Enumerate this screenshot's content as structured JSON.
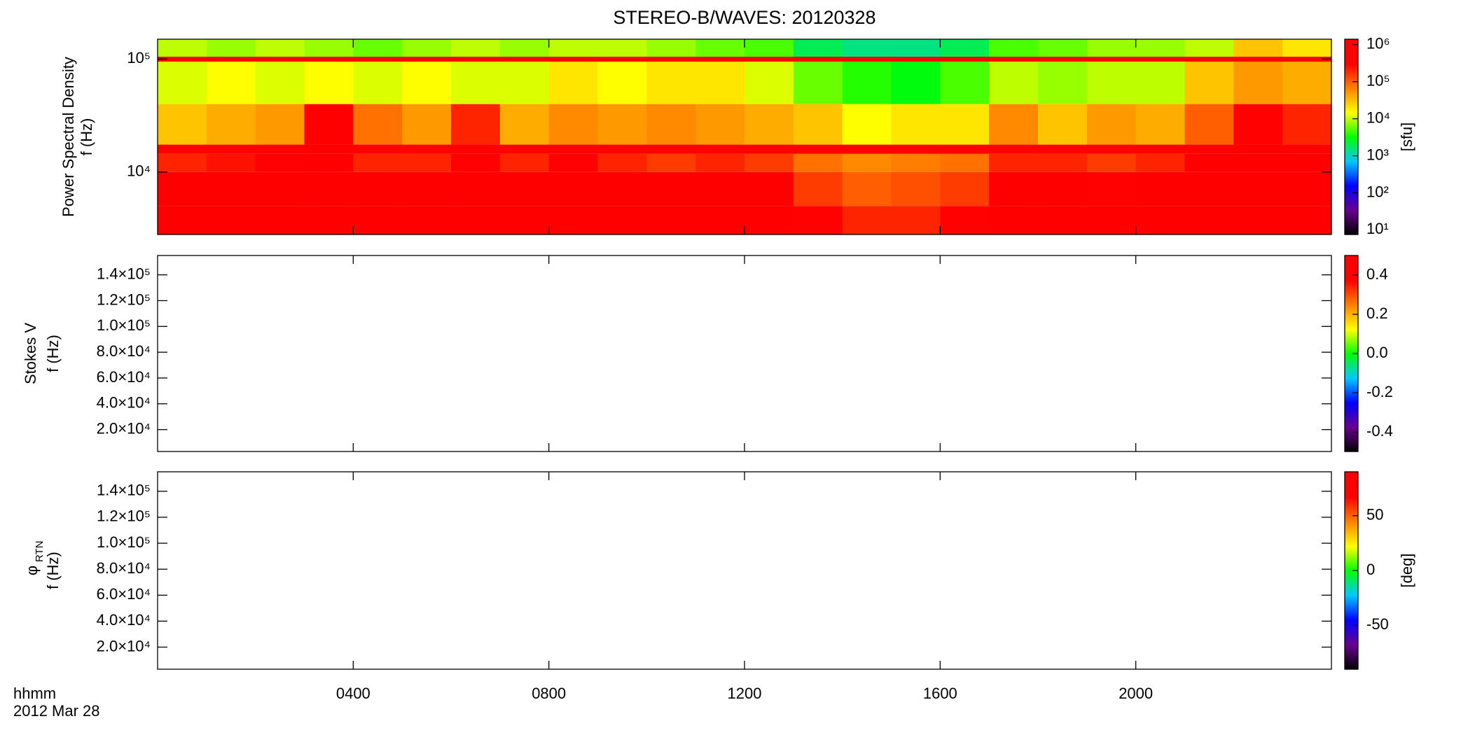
{
  "chart_data": [
    {
      "type": "heatmap",
      "title": "STEREO-B/WAVES: 20120328",
      "ylabel": [
        "Power Spectral Density",
        "f (Hz)"
      ],
      "xlim": [
        0,
        24
      ],
      "ylim": [
        2800,
        150000
      ],
      "log_y": true,
      "yticks": [
        {
          "value": 10000,
          "label": "10⁴"
        },
        {
          "value": 100000,
          "label": "10⁵"
        }
      ],
      "x_bins": [
        0,
        1,
        2,
        3,
        4,
        5,
        6,
        7,
        8,
        9,
        10,
        11,
        12,
        13,
        14,
        15,
        16,
        17,
        18,
        19,
        20,
        21,
        22,
        23,
        24
      ],
      "y_bins": [
        2800,
        5000,
        10000,
        14500,
        17500,
        40000,
        95000,
        105000,
        150000
      ],
      "z": [
        [
          1000000,
          1000000,
          1000000,
          1000000,
          1000000,
          1000000,
          1000000,
          1000000,
          1000000,
          1000000,
          1000000,
          1000000,
          1000000,
          300000,
          200000,
          200000,
          300000,
          1000000,
          1000000,
          1000000,
          1000000,
          1000000,
          1000000,
          1000000
        ],
        [
          400000,
          500000,
          400000,
          600000,
          500000,
          600000,
          500000,
          1000000,
          1000000,
          600000,
          500000,
          600000,
          500000,
          150000,
          100000,
          120000,
          150000,
          600000,
          500000,
          300000,
          400000,
          1000000,
          1000000,
          1000000
        ],
        [
          200000,
          250000,
          300000,
          1000000,
          200000,
          200000,
          300000,
          200000,
          300000,
          200000,
          150000,
          200000,
          150000,
          80000,
          60000,
          70000,
          80000,
          200000,
          200000,
          150000,
          200000,
          800000,
          1000000,
          1000000
        ],
        [
          1000000,
          1000000,
          1000000,
          1000000,
          1000000,
          1000000,
          1000000,
          1000000,
          1000000,
          1000000,
          1000000,
          1000000,
          1000000,
          1000000,
          1000000,
          1000000,
          1000000,
          1000000,
          1000000,
          1000000,
          1000000,
          1000000,
          1000000,
          1000000
        ],
        [
          30000,
          40000,
          50000,
          500000,
          80000,
          50000,
          200000,
          40000,
          60000,
          50000,
          60000,
          50000,
          40000,
          30000,
          15000,
          20000,
          20000,
          60000,
          30000,
          50000,
          40000,
          100000,
          300000,
          200000
        ],
        [
          12000,
          15000,
          12000,
          15000,
          12000,
          15000,
          12000,
          12000,
          20000,
          15000,
          20000,
          20000,
          12000,
          6000,
          4000,
          3000,
          5000,
          10000,
          8000,
          10000,
          10000,
          30000,
          50000,
          40000
        ],
        [
          1000000,
          1000000,
          1000000,
          1000000,
          1000000,
          1000000,
          1000000,
          1000000,
          1000000,
          1000000,
          1000000,
          1000000,
          1000000,
          1000000,
          1000000,
          1000000,
          1000000,
          1000000,
          1000000,
          1000000,
          1000000,
          1000000,
          1000000,
          1000000
        ],
        [
          10000,
          8000,
          10000,
          8000,
          6000,
          8000,
          10000,
          8000,
          10000,
          10000,
          8000,
          6000,
          5000,
          2000,
          1500,
          1500,
          2000,
          5000,
          6000,
          8000,
          8000,
          10000,
          30000,
          20000
        ]
      ],
      "zlim": [
        7.5,
        1400000
      ],
      "colorbar_log": true,
      "colorbar_ticks": [
        {
          "value": 10,
          "label": "10¹"
        },
        {
          "value": 100,
          "label": "10²"
        },
        {
          "value": 1000,
          "label": "10³"
        },
        {
          "value": 10000,
          "label": "10⁴"
        },
        {
          "value": 100000,
          "label": "10⁵"
        },
        {
          "value": 1000000,
          "label": "10⁶"
        }
      ],
      "colorbar_label": "[sfu]",
      "colormap": [
        "#000000",
        "#6a0090",
        "#0000ff",
        "#00c8ff",
        "#00ff00",
        "#ffff00",
        "#ff8000",
        "#ff0000",
        "#ff0000"
      ]
    },
    {
      "type": "heatmap",
      "ylabel": [
        "Stokes V",
        "f (Hz)"
      ],
      "xlim": [
        0,
        24
      ],
      "ylim": [
        3000,
        155000
      ],
      "log_y": false,
      "yticks": [
        {
          "value": 20000,
          "label": "2.0×10⁴"
        },
        {
          "value": 40000,
          "label": "4.0×10⁴"
        },
        {
          "value": 60000,
          "label": "6.0×10⁴"
        },
        {
          "value": 80000,
          "label": "8.0×10⁴"
        },
        {
          "value": 100000,
          "label": "1.0×10⁵"
        },
        {
          "value": 120000,
          "label": "1.2×10⁵"
        },
        {
          "value": 140000,
          "label": "1.4×10⁵"
        }
      ],
      "zlim": [
        -0.5,
        0.5
      ],
      "colorbar_log": false,
      "colorbar_ticks": [
        -0.4,
        -0.2,
        {
          "value": 0,
          "label": "0.0"
        },
        0.2,
        0.4
      ],
      "colormap": [
        "#000000",
        "#6a0090",
        "#0000ff",
        "#00c8ff",
        "#00ff00",
        "#ffff00",
        "#ff8000",
        "#ff0000",
        "#ff0000"
      ]
    },
    {
      "type": "heatmap",
      "ylabel": [
        "φ",
        "f (Hz)"
      ],
      "ylabel_sub": "RTN",
      "xlim": [
        0,
        24
      ],
      "ylim": [
        3000,
        155000
      ],
      "log_y": false,
      "yticks": [
        {
          "value": 20000,
          "label": "2.0×10⁴"
        },
        {
          "value": 40000,
          "label": "4.0×10⁴"
        },
        {
          "value": 60000,
          "label": "6.0×10⁴"
        },
        {
          "value": 80000,
          "label": "8.0×10⁴"
        },
        {
          "value": 100000,
          "label": "1.0×10⁵"
        },
        {
          "value": 120000,
          "label": "1.2×10⁵"
        },
        {
          "value": 140000,
          "label": "1.4×10⁵"
        }
      ],
      "xticks": [
        {
          "value": 4,
          "label": "0400"
        },
        {
          "value": 8,
          "label": "0800"
        },
        {
          "value": 12,
          "label": "1200"
        },
        {
          "value": 16,
          "label": "1600"
        },
        {
          "value": 20,
          "label": "2000"
        }
      ],
      "xlabel": "hhmm",
      "xlabel_date": "2012 Mar 28",
      "zlim": [
        -90,
        90
      ],
      "colorbar_log": false,
      "colorbar_ticks": [
        -50,
        0,
        50
      ],
      "colorbar_label": "[deg]",
      "colormap": [
        "#000000",
        "#6a0090",
        "#0000ff",
        "#00c8ff",
        "#00ff00",
        "#ffff00",
        "#ff8000",
        "#ff0000",
        "#ff0000"
      ]
    }
  ]
}
